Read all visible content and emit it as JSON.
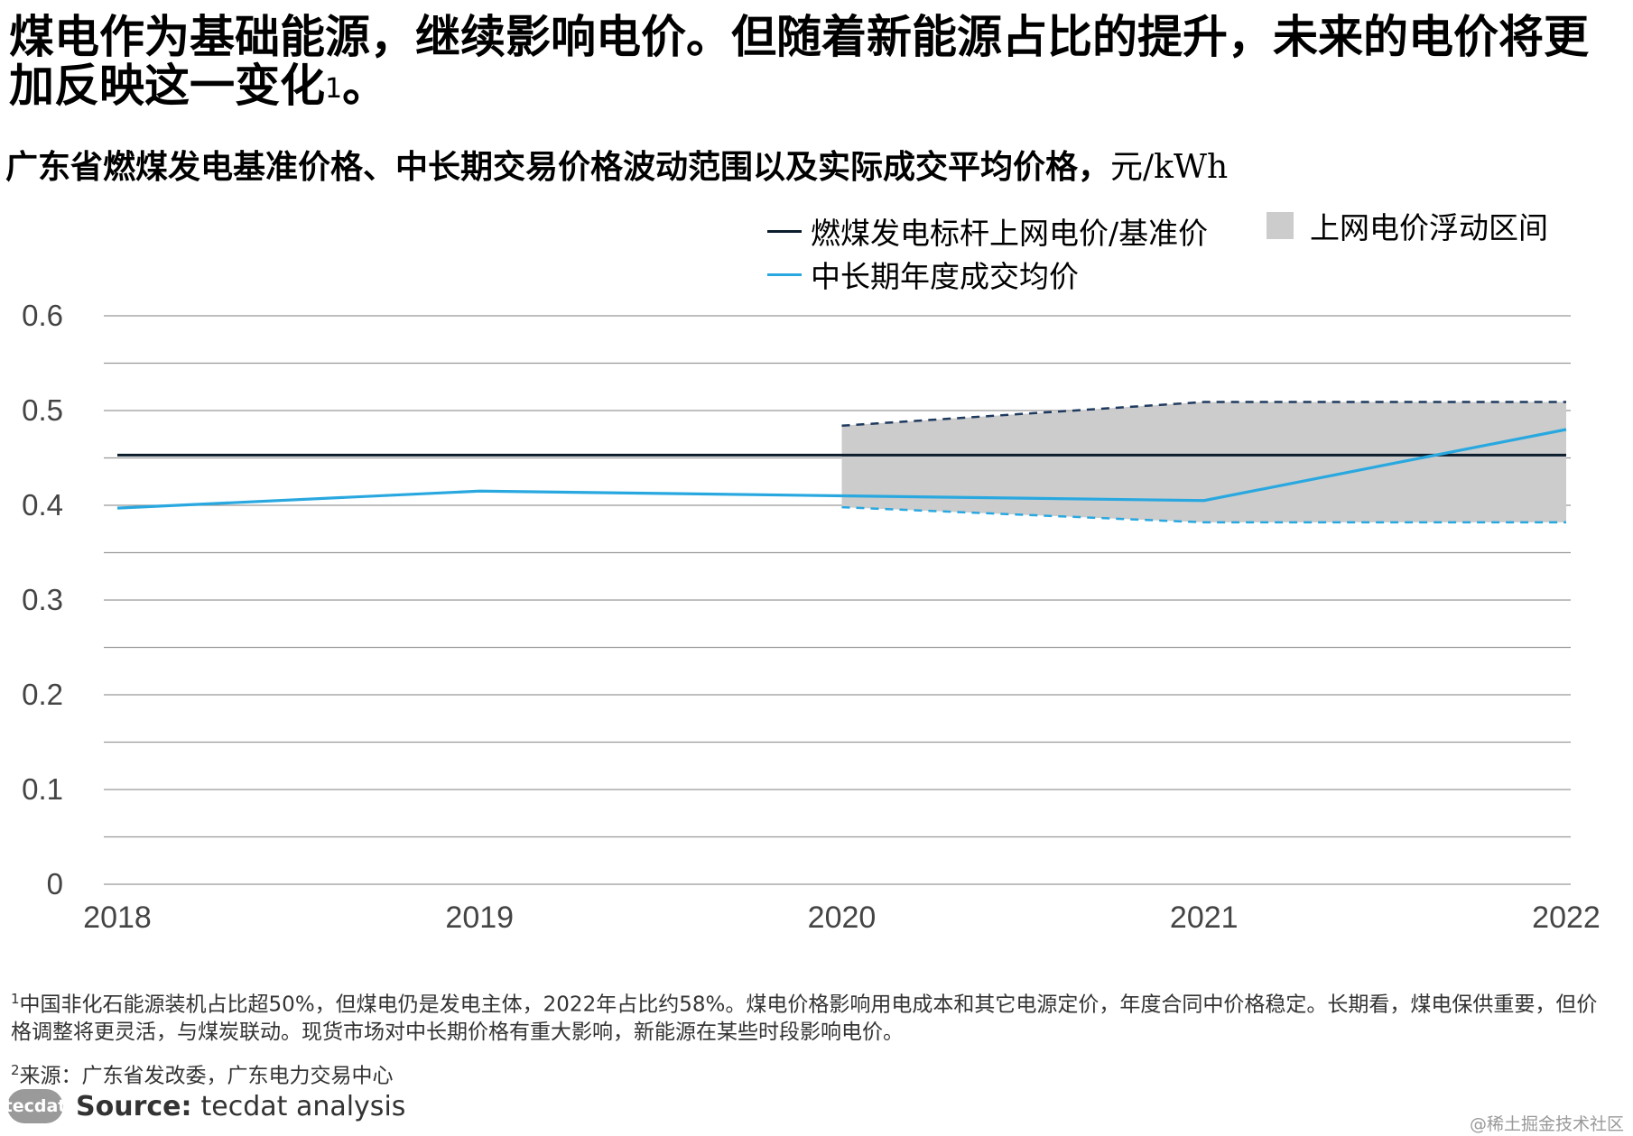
{
  "headline": {
    "text": "煤电作为基础能源，继续影响电价。但随着新能源占比的提升，未来的电价将更加反映这一变化",
    "sup": "1",
    "end": "。"
  },
  "subtitle": {
    "text": "广东省燃煤发电基准价格、中长期交易价格波动范围以及实际成交平均价格，",
    "unit": "元/kWh"
  },
  "legend": {
    "benchmark": "燃煤发电标杆上网电价/基准价",
    "band": "上网电价浮动区间",
    "avg": "中长期年度成交均价"
  },
  "colors": {
    "benchmark": "#0b1c2c",
    "band_fill": "#cccccc",
    "band_upper": "#1f3a5f",
    "band_lower": "#29a8e0",
    "avg": "#29a8e0",
    "grid": "#999999"
  },
  "chart_data": {
    "type": "line",
    "x": [
      "2018",
      "2019",
      "2020",
      "2021",
      "2022"
    ],
    "ylim": [
      0,
      0.6
    ],
    "yticks": [
      "0.6",
      "0.5",
      "0.4",
      "0.3",
      "0.2",
      "0.1",
      "0"
    ],
    "series": [
      {
        "name": "燃煤发电标杆上网电价/基准价",
        "values": [
          0.453,
          0.453,
          0.453,
          0.453,
          0.453
        ]
      },
      {
        "name": "中长期年度成交均价",
        "values": [
          0.397,
          0.415,
          0.41,
          0.405,
          0.48
        ]
      }
    ],
    "band": {
      "name": "上网电价浮动区间",
      "x": [
        "2020",
        "2021",
        "2022"
      ],
      "upper": [
        0.484,
        0.509,
        0.509
      ],
      "lower": [
        0.398,
        0.382,
        0.382
      ]
    }
  },
  "footnotes": {
    "fn1_sup": "1",
    "fn1": "中国非化石能源装机占比超50%，但煤电仍是发电主体，2022年占比约58%。煤电价格影响用电成本和其它电源定价，年度合同中价格稳定。长期看，煤电保供重要，但价格调整将更灵活，与煤炭联动。现货市场对中长期价格有重大影响，新能源在某些时段影响电价。",
    "fn2_sup": "2",
    "fn2": "来源：广东省发改委，广东电力交易中心"
  },
  "source": {
    "logo": "tecdat",
    "label": "Source:",
    "text": "tecdat analysis"
  },
  "watermark": "@稀土掘金技术社区"
}
